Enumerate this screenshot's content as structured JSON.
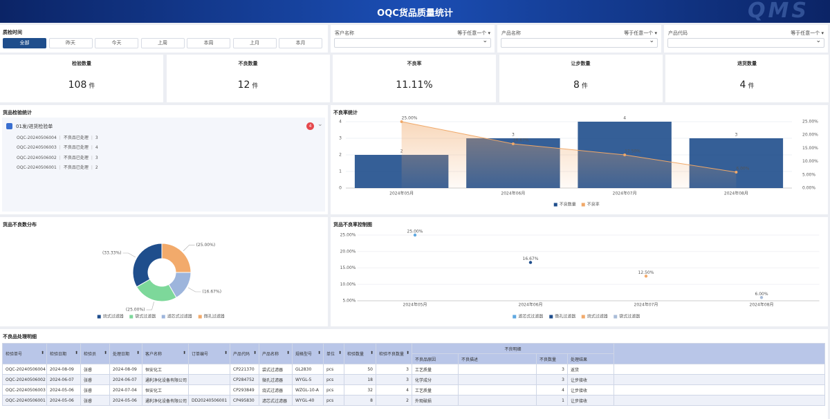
{
  "header": {
    "title": "OQC货品质量统计",
    "logo": "QMS"
  },
  "filters": {
    "time_label": "质检时间",
    "time_options": [
      {
        "label": "全部",
        "selected": true
      },
      {
        "label": "昨天"
      },
      {
        "label": "今天"
      },
      {
        "label": "上周"
      },
      {
        "label": "本周"
      },
      {
        "label": "上月"
      },
      {
        "label": "本月"
      }
    ],
    "fields": [
      {
        "label": "客户名称",
        "operator": "等于任意一个"
      },
      {
        "label": "产品名称",
        "operator": "等于任意一个"
      },
      {
        "label": "产品代码",
        "operator": "等于任意一个"
      }
    ]
  },
  "kpis": [
    {
      "label": "检验数量",
      "value": 108,
      "unit": "件"
    },
    {
      "label": "不良数量",
      "value": 12,
      "unit": "件"
    },
    {
      "label": "不良率",
      "value": "11.11%"
    },
    {
      "label": "让步数量",
      "value": 8,
      "unit": "件"
    },
    {
      "label": "退货数量",
      "value": 4,
      "unit": "件"
    }
  ],
  "inspection_panel": {
    "title": "货品检验统计",
    "group": "01发/进货检验单",
    "count": 4,
    "items": [
      {
        "id": "OQC-20240506004",
        "status": "不良品已处理",
        "qty": 3
      },
      {
        "id": "OQC-20240506003",
        "status": "不良品已处理",
        "qty": 4
      },
      {
        "id": "OQC-20240506002",
        "status": "不良品已处理",
        "qty": 3
      },
      {
        "id": "OQC-20240506001",
        "status": "不良品已处理",
        "qty": 2
      }
    ]
  },
  "defect_rate_chart": {
    "title": "不良率统计",
    "type": "bar",
    "categories": [
      "2024年05月",
      "2024年06月",
      "2024年07月",
      "2024年08月"
    ],
    "series": [
      {
        "name": "不良数量",
        "color": "#1f4e8c",
        "values": [
          2,
          3,
          4,
          3
        ]
      },
      {
        "name": "不良率",
        "type": "line",
        "axis": "y2",
        "color": "#f0a868",
        "values": [
          25,
          16.67,
          12.5,
          6
        ],
        "value_labels": [
          "25.00%",
          "16.67%",
          "12.50%",
          "6.00%"
        ]
      }
    ],
    "ylim": [
      0,
      4
    ],
    "yticks": [
      0,
      1,
      2,
      3,
      4
    ],
    "y2lim": [
      0,
      25
    ],
    "y2ticks": [
      {
        "value": 0,
        "label": "0.00%"
      },
      {
        "value": 5,
        "label": "5.00%"
      },
      {
        "value": 10,
        "label": "10.00%"
      },
      {
        "value": 15,
        "label": "15.00%"
      },
      {
        "value": 20,
        "label": "20.00%"
      },
      {
        "value": 25,
        "label": "25.00%"
      }
    ],
    "grid": true
  },
  "distribution_chart": {
    "title": "货品不良数分布",
    "type": "pie",
    "categories": [
      "烧式过滤器",
      "袋式过滤器",
      "滤芯式过滤器",
      "微孔过滤器"
    ],
    "values": [
      33.33,
      25,
      16.67,
      25
    ],
    "value_labels": [
      "(33.33%)",
      "(25.00%)",
      "(16.67%)",
      "(25.00%)"
    ],
    "colors": [
      "#1f4e8c",
      "#7dd89a",
      "#9db5dc",
      "#f2aa6b"
    ]
  },
  "control_chart": {
    "title": "货品不良率控制图",
    "type": "scatter",
    "categories": [
      "2024年05月",
      "2024年06月",
      "2024年07月",
      "2024年08月"
    ],
    "series": [
      {
        "name": "滤芯式过滤器",
        "color": "#5fa8e0",
        "values": [
          25,
          null,
          null,
          null
        ],
        "value_labels": [
          "25.00%",
          null,
          null,
          null
        ]
      },
      {
        "name": "微孔过滤器",
        "color": "#1f4e8c",
        "values": [
          null,
          16.67,
          null,
          null
        ],
        "value_labels": [
          null,
          "16.67%",
          null,
          null
        ]
      },
      {
        "name": "烧式过滤器",
        "color": "#f2aa6b",
        "values": [
          null,
          null,
          12.5,
          null
        ],
        "value_labels": [
          null,
          null,
          "12.50%",
          null
        ]
      },
      {
        "name": "袋式过滤器",
        "color": "#a9bcd8",
        "values": [
          null,
          null,
          null,
          6
        ],
        "value_labels": [
          null,
          null,
          null,
          "6.00%"
        ]
      }
    ],
    "ylim": [
      5,
      25
    ],
    "yticks": [
      {
        "value": 5,
        "label": "5.00%"
      },
      {
        "value": 10,
        "label": "10.00%"
      },
      {
        "value": 15,
        "label": "15.00%"
      },
      {
        "value": 20,
        "label": "20.00%"
      },
      {
        "value": 25,
        "label": "25.00%"
      }
    ],
    "grid": true
  },
  "table": {
    "title": "不良品处理明细",
    "columns": [
      "检验单号",
      "检验日期",
      "检验员",
      "处理日期",
      "客户名称",
      "订单编号",
      "产品代码",
      "产品名称",
      "规格型号",
      "单位",
      "检验数量",
      "检验不良数量"
    ],
    "group": "不良明细",
    "sub_columns": [
      "不良品原因",
      "不良描述",
      "不良数量",
      "处理结果"
    ],
    "rows": [
      [
        "OQC-20240506004",
        "2024-08-09",
        "张睿",
        "2024-08-09",
        "恒安化工",
        null,
        "CP221370",
        "袋式过滤器",
        "GL2830",
        "pcs",
        50,
        3,
        "工艺质量",
        null,
        3,
        "返货"
      ],
      [
        "OQC-20240506002",
        "2024-06-07",
        "张睿",
        "2024-06-07",
        "通利净化设备有限公司",
        null,
        "CP284752",
        "微孔过滤器",
        "WYGL-5",
        "pcs",
        18,
        3,
        "化学成分",
        null,
        3,
        "让步接收"
      ],
      [
        "OQC-20240506003",
        "2024-05-06",
        "张睿",
        "2024-07-04",
        "恒安化工",
        null,
        "CP293849",
        "烧式过滤器",
        "WZGL-10-A",
        "pcs",
        32,
        4,
        "工艺质量",
        null,
        4,
        "让步接收"
      ],
      [
        "OQC-20240506001",
        "2024-05-06",
        "张睿",
        "2024-05-06",
        "通利净化设备有限公司",
        "DD20240506001",
        "CP495830",
        "滤芯式过滤器",
        "WYGL-40",
        "pcs",
        8,
        2,
        "外观破损",
        null,
        1,
        "让步接收"
      ]
    ]
  }
}
